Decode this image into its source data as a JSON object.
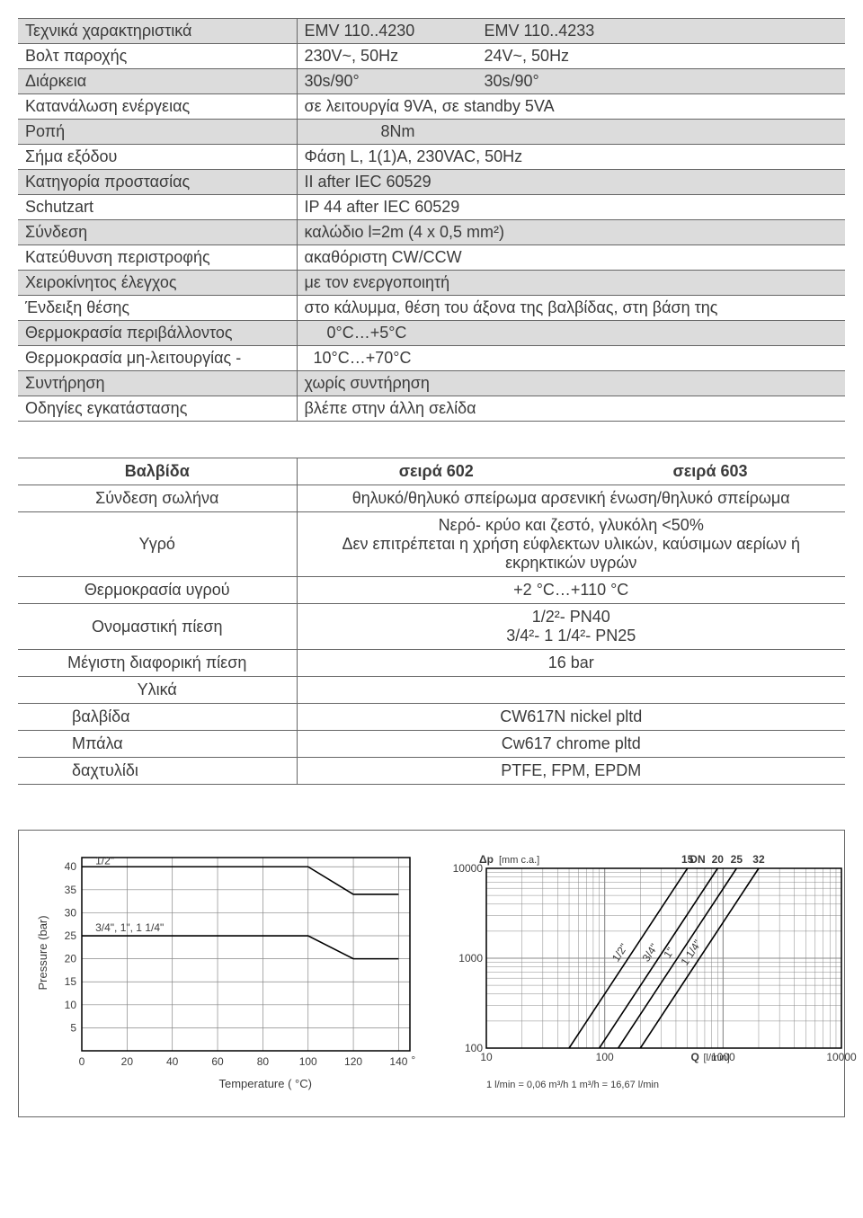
{
  "specs": {
    "rows": [
      {
        "shade": true,
        "label": "Τεχνικά χαρακτηριστικά",
        "col1": "EMV 110..4230",
        "col2": "EMV 110..4233"
      },
      {
        "shade": false,
        "label": "Βολτ παροχής",
        "col1": "230V~, 50Hz",
        "col2": "24V~, 50Hz"
      },
      {
        "shade": true,
        "label": "Διάρκεια",
        "col1": "30s/90°",
        "col2": "30s/90°"
      },
      {
        "shade": false,
        "label": "Κατανάλωση ενέργειας",
        "val": "σε λειτουργία 9VA, σε standby 5VA"
      },
      {
        "shade": true,
        "label": "Ροπή",
        "val": "                 8Nm",
        "pre": true
      },
      {
        "shade": false,
        "label": "Σήμα εξόδου",
        "val": "Φάση L, 1(1)A, 230VAC, 50Hz"
      },
      {
        "shade": true,
        "label": "Κατηγορία προστασίας",
        "val": "II after IEC 60529"
      },
      {
        "shade": false,
        "label": "Schutzart",
        "val": "IP 44 after IEC 60529"
      },
      {
        "shade": true,
        "label": "Σύνδεση",
        "val": "καλώδιο l=2m (4 x 0,5 mm²)"
      },
      {
        "shade": false,
        "label": "Κατεύθυνση περιστροφής",
        "val": "ακαθόριστη CW/CCW"
      },
      {
        "shade": true,
        "label": "Χειροκίνητος έλεγχος",
        "val": "με τον ενεργοποιητή"
      },
      {
        "shade": false,
        "label": "Ένδειξη θέσης",
        "val": "στο κάλυμμα, θέση του άξονα της βαλβίδας, στη βάση της"
      },
      {
        "shade": true,
        "label": "Θερμοκρασία περιβάλλοντος",
        "val": "     0°C…+5°C",
        "pre": true
      },
      {
        "shade": false,
        "label": "Θερμοκρασία μη-λειτουργίας -",
        "val": "  10°C…+70°C",
        "pre": true
      },
      {
        "shade": true,
        "label": "Συντήρηση",
        "val": "χωρίς συντήρηση"
      },
      {
        "shade": false,
        "label": "Οδηγίες εγκατάστασης",
        "val": "βλέπε στην άλλη σελίδα"
      }
    ]
  },
  "valve": {
    "header": {
      "c0": "Βαλβίδα",
      "c1": "σειρά 602",
      "c2": "σειρά 603"
    },
    "rows": [
      {
        "label": "Σύνδεση σωλήνα",
        "val": "θηλυκό/θηλυκό σπείρωμα αρσενική  ένωση/θηλυκό σπείρωμα"
      },
      {
        "label": "Υγρό",
        "val": "Νερό- κρύο και ζεστό, γλυκόλη <50%\nΔεν επιτρέπεται η χρήση εύφλεκτων υλικών, καύσιμων αερίων ή εκρηκτικών υγρών"
      },
      {
        "label": "Θερμοκρασία υγρού",
        "val": "+2 °C…+110 °C"
      },
      {
        "label": "Ονομαστική πίεση",
        "val": "1/2²- PN40\n3/4²- 1 1/4²- PN25"
      },
      {
        "label": "Μέγιστη διαφορική πίεση",
        "val": "16 bar"
      },
      {
        "label": "Υλικά",
        "val": ""
      },
      {
        "label": "βαλβίδα",
        "indent": true,
        "val": "CW617N nickel pltd"
      },
      {
        "label": "Μπάλα",
        "indent": true,
        "val": "Cw617 chrome pltd"
      },
      {
        "label": "δαχτυλίδι",
        "indent": true,
        "val": "PTFE, FPM, EPDM"
      }
    ]
  },
  "chart_pt": {
    "type": "line",
    "xlabel": "Temperature ( °C)",
    "ylabel": "Pressure (bar)",
    "xlim": [
      0,
      145
    ],
    "ylim": [
      0,
      42
    ],
    "xticks": [
      0,
      20,
      40,
      60,
      80,
      100,
      120,
      140
    ],
    "yticks": [
      5,
      10,
      15,
      20,
      25,
      30,
      35,
      40
    ],
    "grid_color": "#888888",
    "bg": "#ffffff",
    "line_color": "#000000",
    "line_width": 1.6,
    "series": [
      {
        "name": "1/2\"",
        "label_x": 6,
        "label_y": 40.5,
        "pts": [
          [
            0,
            40
          ],
          [
            100,
            40
          ],
          [
            120,
            34
          ],
          [
            140,
            34
          ]
        ]
      },
      {
        "name": "3/4\", 1\", 1 1/4\"",
        "label_x": 6,
        "label_y": 26,
        "pts": [
          [
            0,
            25
          ],
          [
            100,
            25
          ],
          [
            120,
            20
          ],
          [
            140,
            20
          ]
        ]
      }
    ],
    "degree_mark": "°",
    "label_fontsize": 12
  },
  "chart_dp": {
    "type": "loglog",
    "title_left": "Δp",
    "title_left_unit": "[mm c.a.]",
    "dn_label": "DN",
    "dn_values": [
      "15",
      "20",
      "25",
      "32"
    ],
    "xlim": [
      10,
      10000
    ],
    "ylim": [
      100,
      10000
    ],
    "x_decades": [
      10,
      100,
      1000,
      10000
    ],
    "y_decades": [
      100,
      1000,
      10000
    ],
    "xlabel": "Q [l/min]",
    "unit_note": "1 l/min  =  0,06  m³/h            1  m³/h  =  16,67  l/min",
    "grid_color": "#888888",
    "line_color": "#000000",
    "line_width": 1.6,
    "series": [
      {
        "name": "1/2\"",
        "p1": [
          50,
          100
        ],
        "p2": [
          500,
          10000
        ]
      },
      {
        "name": "3/4\"",
        "p1": [
          90,
          100
        ],
        "p2": [
          900,
          10000
        ]
      },
      {
        "name": "1\"",
        "p1": [
          130,
          100
        ],
        "p2": [
          1300,
          10000
        ]
      },
      {
        "name": "1 1/4\"",
        "p1": [
          200,
          100
        ],
        "p2": [
          2000,
          10000
        ]
      }
    ]
  }
}
